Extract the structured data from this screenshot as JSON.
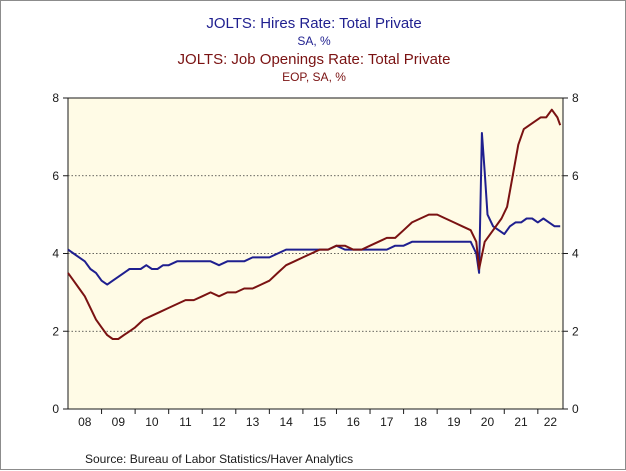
{
  "chart_data": {
    "type": "line",
    "title_lines": [
      {
        "text": "JOLTS: Hires Rate: Total Private",
        "color": "#1f1f8f"
      },
      {
        "text": "SA, %",
        "color": "#1f1f8f"
      },
      {
        "text": "JOLTS: Job Openings Rate: Total Private",
        "color": "#7a1212"
      },
      {
        "text": "EOP, SA, %",
        "color": "#7a1212"
      }
    ],
    "source": "Source:  Bureau of Labor Statistics/Haver Analytics",
    "x_ticks": [
      "08",
      "09",
      "10",
      "11",
      "12",
      "13",
      "14",
      "15",
      "16",
      "17",
      "18",
      "19",
      "20",
      "21",
      "22"
    ],
    "x_range": [
      "2008-01",
      "2022-09"
    ],
    "ylim": [
      0,
      8
    ],
    "y_ticks": [
      0,
      2,
      4,
      6,
      8
    ],
    "grid": "horizontal dotted",
    "plot_background": "#fffbe6",
    "series": [
      {
        "name": "JOLTS: Hires Rate: Total Private",
        "color": "#1f1f8f",
        "points": [
          [
            "2008-01",
            4.1
          ],
          [
            "2008-03",
            4.0
          ],
          [
            "2008-05",
            3.9
          ],
          [
            "2008-07",
            3.8
          ],
          [
            "2008-09",
            3.6
          ],
          [
            "2008-11",
            3.5
          ],
          [
            "2009-01",
            3.3
          ],
          [
            "2009-03",
            3.2
          ],
          [
            "2009-05",
            3.3
          ],
          [
            "2009-07",
            3.4
          ],
          [
            "2009-09",
            3.5
          ],
          [
            "2009-11",
            3.6
          ],
          [
            "2010-01",
            3.6
          ],
          [
            "2010-03",
            3.6
          ],
          [
            "2010-05",
            3.7
          ],
          [
            "2010-07",
            3.6
          ],
          [
            "2010-09",
            3.6
          ],
          [
            "2010-11",
            3.7
          ],
          [
            "2011-01",
            3.7
          ],
          [
            "2011-04",
            3.8
          ],
          [
            "2011-07",
            3.8
          ],
          [
            "2011-10",
            3.8
          ],
          [
            "2012-01",
            3.8
          ],
          [
            "2012-04",
            3.8
          ],
          [
            "2012-07",
            3.7
          ],
          [
            "2012-10",
            3.8
          ],
          [
            "2013-01",
            3.8
          ],
          [
            "2013-04",
            3.8
          ],
          [
            "2013-07",
            3.9
          ],
          [
            "2013-10",
            3.9
          ],
          [
            "2014-01",
            3.9
          ],
          [
            "2014-04",
            4.0
          ],
          [
            "2014-07",
            4.1
          ],
          [
            "2014-10",
            4.1
          ],
          [
            "2015-01",
            4.1
          ],
          [
            "2015-04",
            4.1
          ],
          [
            "2015-07",
            4.1
          ],
          [
            "2015-10",
            4.1
          ],
          [
            "2016-01",
            4.2
          ],
          [
            "2016-04",
            4.1
          ],
          [
            "2016-07",
            4.1
          ],
          [
            "2016-10",
            4.1
          ],
          [
            "2017-01",
            4.1
          ],
          [
            "2017-04",
            4.1
          ],
          [
            "2017-07",
            4.1
          ],
          [
            "2017-10",
            4.2
          ],
          [
            "2018-01",
            4.2
          ],
          [
            "2018-04",
            4.3
          ],
          [
            "2018-07",
            4.3
          ],
          [
            "2018-10",
            4.3
          ],
          [
            "2019-01",
            4.3
          ],
          [
            "2019-04",
            4.3
          ],
          [
            "2019-07",
            4.3
          ],
          [
            "2019-10",
            4.3
          ],
          [
            "2020-01",
            4.3
          ],
          [
            "2020-03",
            4.0
          ],
          [
            "2020-04",
            3.5
          ],
          [
            "2020-05",
            7.1
          ],
          [
            "2020-06",
            6.1
          ],
          [
            "2020-07",
            5.0
          ],
          [
            "2020-09",
            4.7
          ],
          [
            "2020-11",
            4.6
          ],
          [
            "2021-01",
            4.5
          ],
          [
            "2021-03",
            4.7
          ],
          [
            "2021-05",
            4.8
          ],
          [
            "2021-07",
            4.8
          ],
          [
            "2021-09",
            4.9
          ],
          [
            "2021-11",
            4.9
          ],
          [
            "2022-01",
            4.8
          ],
          [
            "2022-03",
            4.9
          ],
          [
            "2022-05",
            4.8
          ],
          [
            "2022-07",
            4.7
          ],
          [
            "2022-09",
            4.7
          ]
        ]
      },
      {
        "name": "JOLTS: Job Openings Rate: Total Private",
        "color": "#7a1212",
        "points": [
          [
            "2008-01",
            3.5
          ],
          [
            "2008-03",
            3.3
          ],
          [
            "2008-05",
            3.1
          ],
          [
            "2008-07",
            2.9
          ],
          [
            "2008-09",
            2.6
          ],
          [
            "2008-11",
            2.3
          ],
          [
            "2009-01",
            2.1
          ],
          [
            "2009-03",
            1.9
          ],
          [
            "2009-05",
            1.8
          ],
          [
            "2009-07",
            1.8
          ],
          [
            "2009-09",
            1.9
          ],
          [
            "2009-11",
            2.0
          ],
          [
            "2010-01",
            2.1
          ],
          [
            "2010-04",
            2.3
          ],
          [
            "2010-07",
            2.4
          ],
          [
            "2010-10",
            2.5
          ],
          [
            "2011-01",
            2.6
          ],
          [
            "2011-04",
            2.7
          ],
          [
            "2011-07",
            2.8
          ],
          [
            "2011-10",
            2.8
          ],
          [
            "2012-01",
            2.9
          ],
          [
            "2012-04",
            3.0
          ],
          [
            "2012-07",
            2.9
          ],
          [
            "2012-10",
            3.0
          ],
          [
            "2013-01",
            3.0
          ],
          [
            "2013-04",
            3.1
          ],
          [
            "2013-07",
            3.1
          ],
          [
            "2013-10",
            3.2
          ],
          [
            "2014-01",
            3.3
          ],
          [
            "2014-04",
            3.5
          ],
          [
            "2014-07",
            3.7
          ],
          [
            "2014-10",
            3.8
          ],
          [
            "2015-01",
            3.9
          ],
          [
            "2015-04",
            4.0
          ],
          [
            "2015-07",
            4.1
          ],
          [
            "2015-10",
            4.1
          ],
          [
            "2016-01",
            4.2
          ],
          [
            "2016-04",
            4.2
          ],
          [
            "2016-07",
            4.1
          ],
          [
            "2016-10",
            4.1
          ],
          [
            "2017-01",
            4.2
          ],
          [
            "2017-04",
            4.3
          ],
          [
            "2017-07",
            4.4
          ],
          [
            "2017-10",
            4.4
          ],
          [
            "2018-01",
            4.6
          ],
          [
            "2018-04",
            4.8
          ],
          [
            "2018-07",
            4.9
          ],
          [
            "2018-10",
            5.0
          ],
          [
            "2019-01",
            5.0
          ],
          [
            "2019-04",
            4.9
          ],
          [
            "2019-07",
            4.8
          ],
          [
            "2019-10",
            4.7
          ],
          [
            "2020-01",
            4.6
          ],
          [
            "2020-03",
            4.3
          ],
          [
            "2020-04",
            3.6
          ],
          [
            "2020-06",
            4.3
          ],
          [
            "2020-09",
            4.6
          ],
          [
            "2020-12",
            4.9
          ],
          [
            "2021-02",
            5.2
          ],
          [
            "2021-04",
            6.0
          ],
          [
            "2021-06",
            6.8
          ],
          [
            "2021-08",
            7.2
          ],
          [
            "2021-10",
            7.3
          ],
          [
            "2021-12",
            7.4
          ],
          [
            "2022-02",
            7.5
          ],
          [
            "2022-04",
            7.5
          ],
          [
            "2022-06",
            7.7
          ],
          [
            "2022-08",
            7.5
          ],
          [
            "2022-09",
            7.3
          ]
        ]
      }
    ]
  }
}
